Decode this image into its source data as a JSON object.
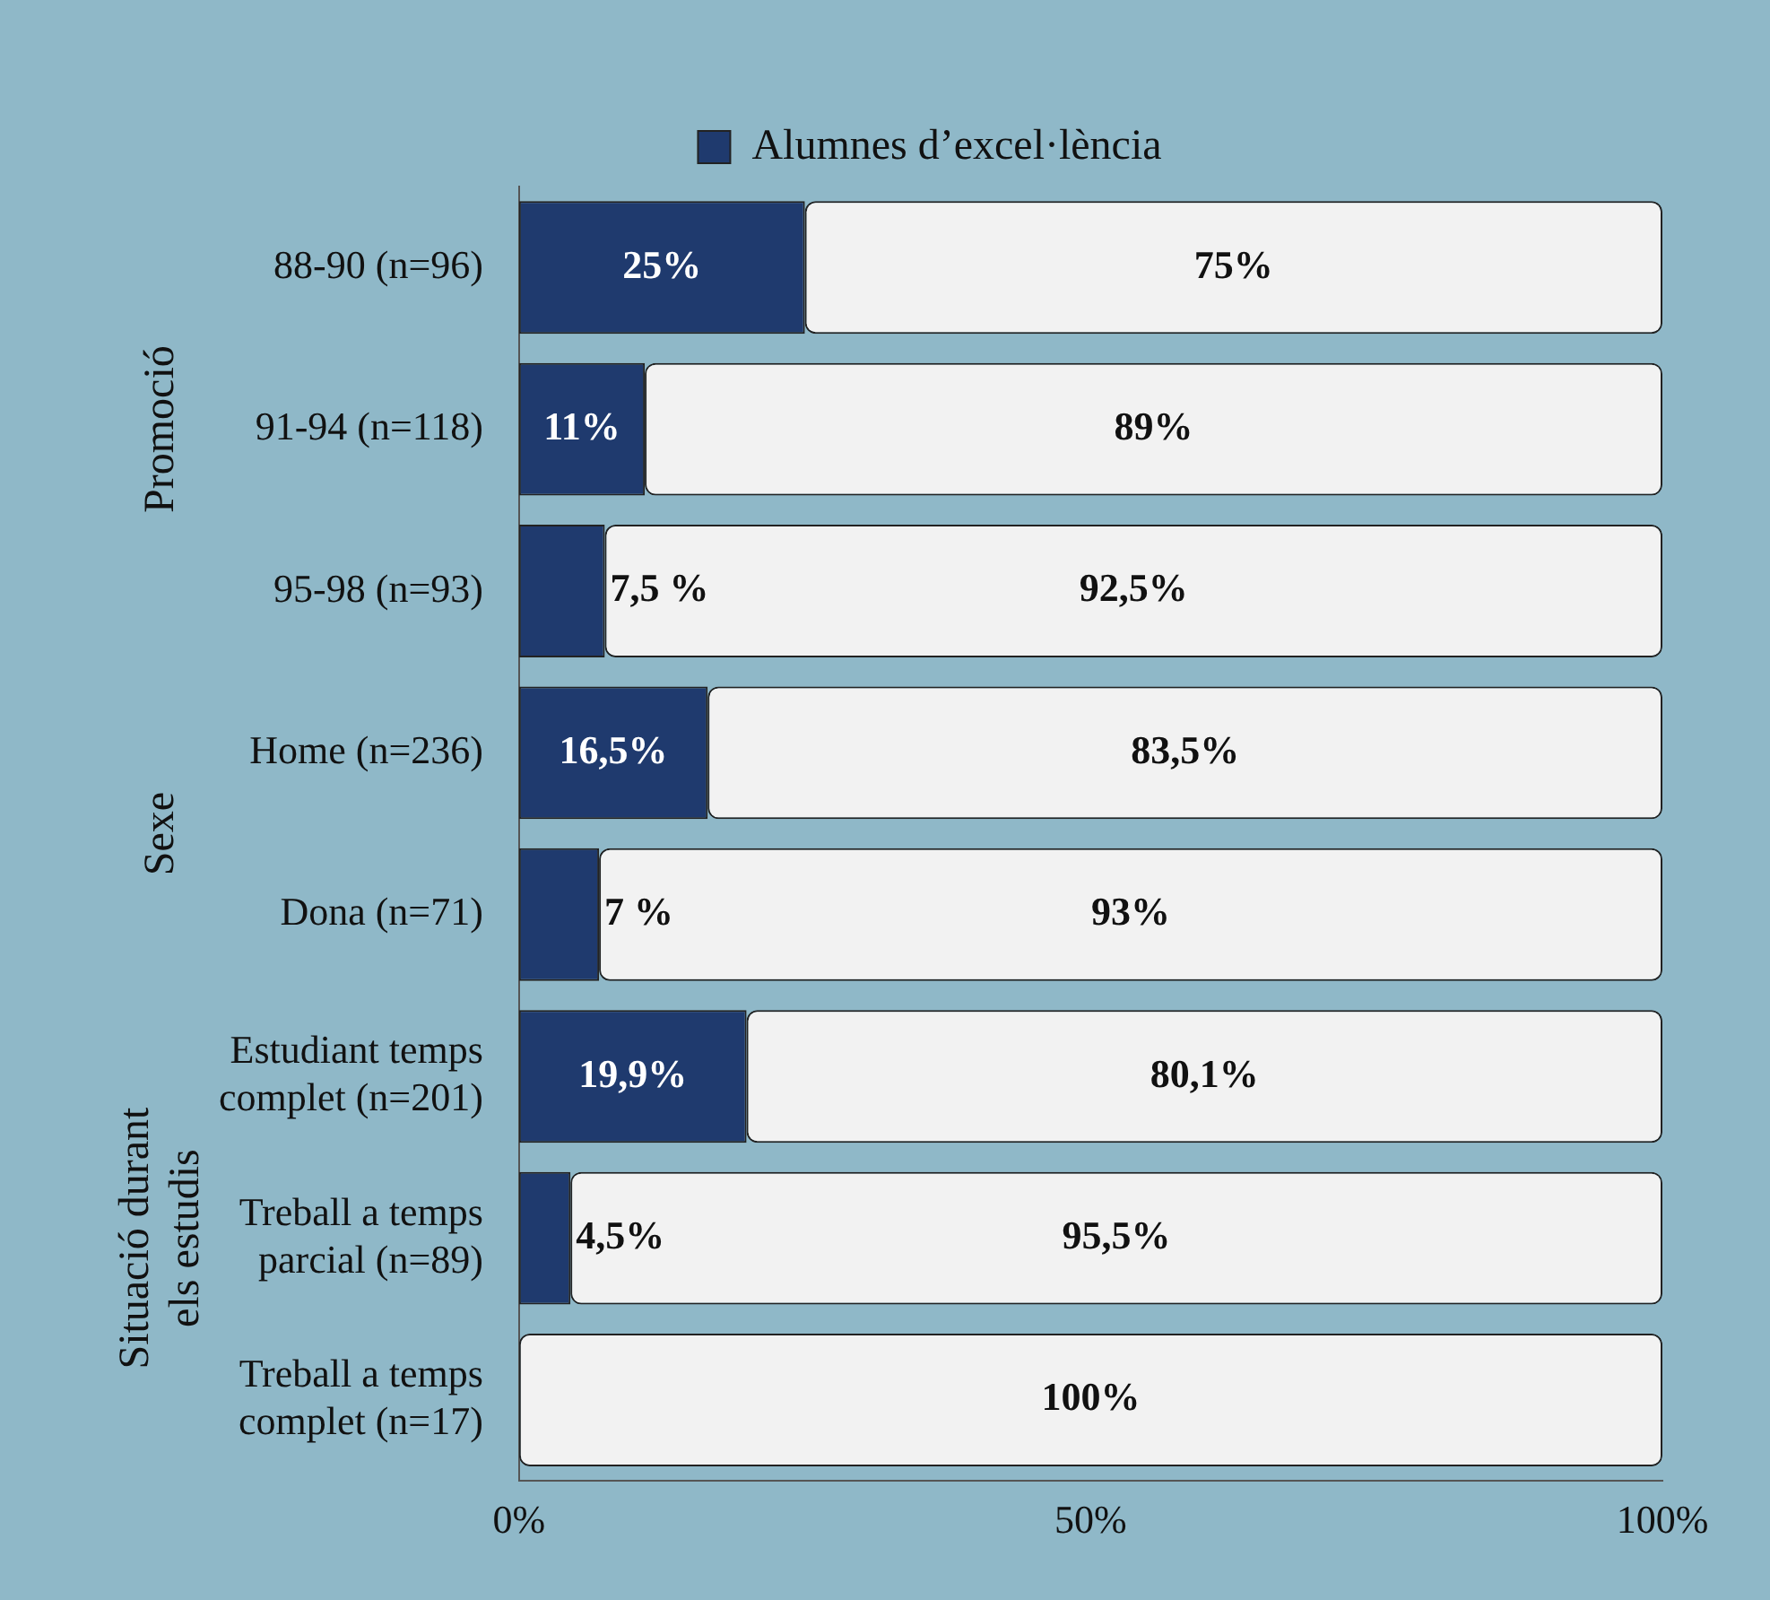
{
  "chart_data": {
    "type": "bar",
    "orientation": "horizontal",
    "stacked": true,
    "categories": [
      "88-90 (n=96)",
      "91-94 (n=118)",
      "95-98 (n=93)",
      "Home (n=236)",
      "Dona (n=71)",
      "Estudiant temps complet (n=201)",
      "Treball a temps parcial  (n=89)",
      "Treball a temps complet  (n=17)"
    ],
    "series": [
      {
        "name": "Alumnes d’excel·lència",
        "color": "#1f3a6e",
        "values": [
          25,
          11,
          7.5,
          16.5,
          7,
          19.9,
          4.5,
          0
        ],
        "value_labels": [
          "25%",
          "11%",
          "7,5 %",
          "16,5%",
          "7 %",
          "19,9%",
          "4,5%",
          null
        ]
      },
      {
        "color": "#f2f2f2",
        "values": [
          75,
          89,
          92.5,
          83.5,
          93,
          80.1,
          95.5,
          100
        ],
        "value_labels": [
          "75%",
          "89%",
          "92,5%",
          "83,5%",
          "93%",
          "80,1%",
          "95,5%",
          "100%"
        ]
      }
    ],
    "xlim": [
      0,
      100
    ],
    "xticks": [
      {
        "value": 0,
        "label": "0%"
      },
      {
        "value": 50,
        "label": "50%"
      },
      {
        "value": 100,
        "label": "100%"
      }
    ],
    "grid": false,
    "legend": "top",
    "annotations": [
      "Promoció",
      "Sexe",
      "Situació durant els estudis"
    ]
  }
}
